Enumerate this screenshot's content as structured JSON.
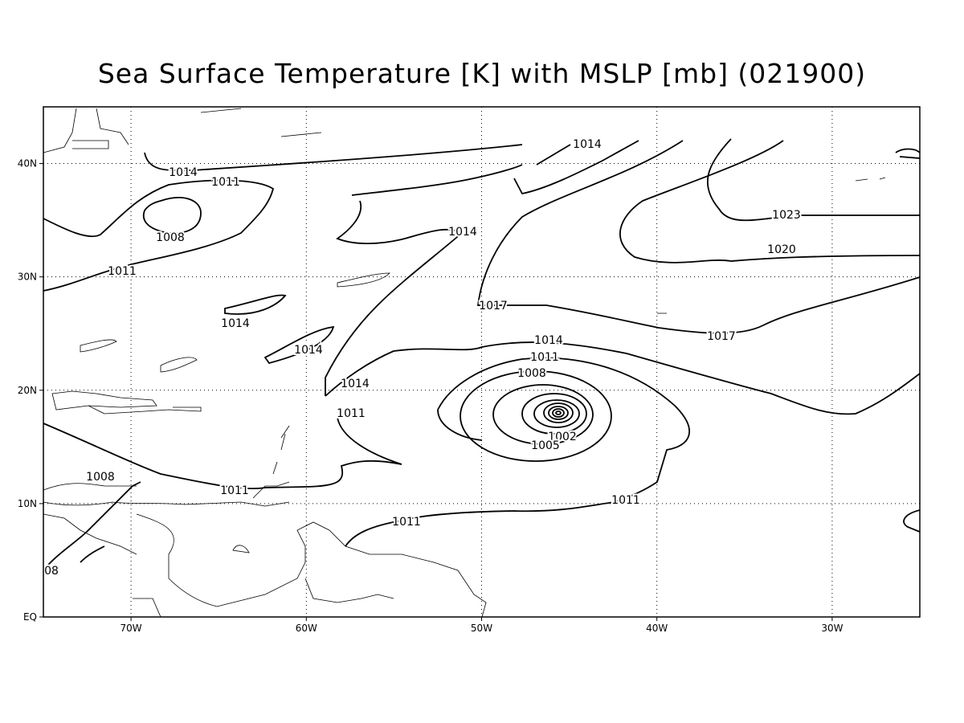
{
  "title": "Sea Surface Temperature [K] with MSLP [mb] (021900)",
  "map": {
    "lonlim": [
      -75,
      -25
    ],
    "latlim": [
      0,
      45
    ],
    "lon_ticks": [
      {
        "value": -70,
        "label": "70W"
      },
      {
        "value": -60,
        "label": "60W"
      },
      {
        "value": -50,
        "label": "50W"
      },
      {
        "value": -40,
        "label": "40W"
      },
      {
        "value": -30,
        "label": "30W"
      }
    ],
    "lat_ticks": [
      {
        "value": 0,
        "label": "EQ"
      },
      {
        "value": 10,
        "label": "10N"
      },
      {
        "value": 20,
        "label": "20N"
      },
      {
        "value": 30,
        "label": "30N"
      },
      {
        "value": 40,
        "label": "40N"
      }
    ],
    "contour_labels": [
      1014,
      1014,
      1011,
      1008,
      1014,
      1023,
      1020,
      1011,
      1017,
      1014,
      1017,
      1014,
      1014,
      1011,
      1008,
      1014,
      1011,
      1002,
      1005,
      1008,
      1011,
      1011,
      1011,
      "08"
    ]
  }
}
